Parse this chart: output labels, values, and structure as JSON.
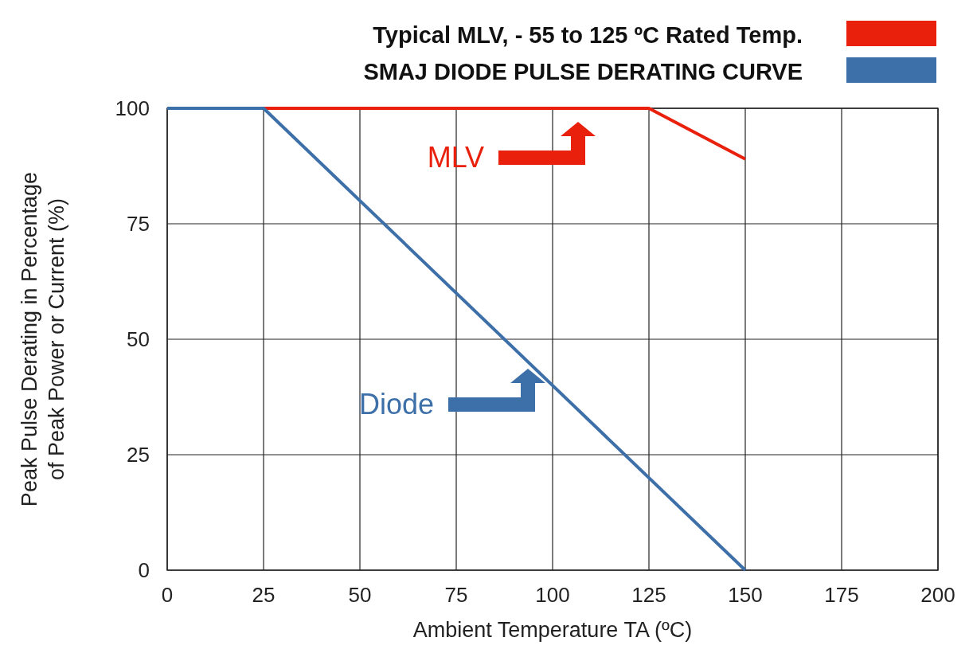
{
  "chart_data": {
    "type": "line",
    "xlabel": "Ambient Temperature TA (ºC)",
    "ylabel": "Peak Pulse Derating in Percentage\nof Peak Power or Current (%)",
    "series": [
      {
        "name": "Typical MLV, - 55 to 125 ºC Rated Temp.",
        "color": "#e8200c",
        "x": [
          25,
          125,
          150
        ],
        "values": [
          100,
          100,
          89
        ]
      },
      {
        "name": "SMAJ DIODE PULSE DERATING CURVE",
        "color": "#3d6fa8",
        "x": [
          0,
          25,
          150
        ],
        "values": [
          100,
          100,
          0
        ]
      }
    ],
    "xlim": [
      0,
      200
    ],
    "xticks": [
      0,
      25,
      50,
      75,
      100,
      125,
      150,
      175,
      200
    ],
    "ylim": [
      0,
      100
    ],
    "yticks": [
      0,
      25,
      50,
      75,
      100
    ],
    "grid": true,
    "legend": "top right",
    "marker": "none",
    "line_style": "solid",
    "annotations": [
      "MLV",
      "Diode"
    ]
  }
}
